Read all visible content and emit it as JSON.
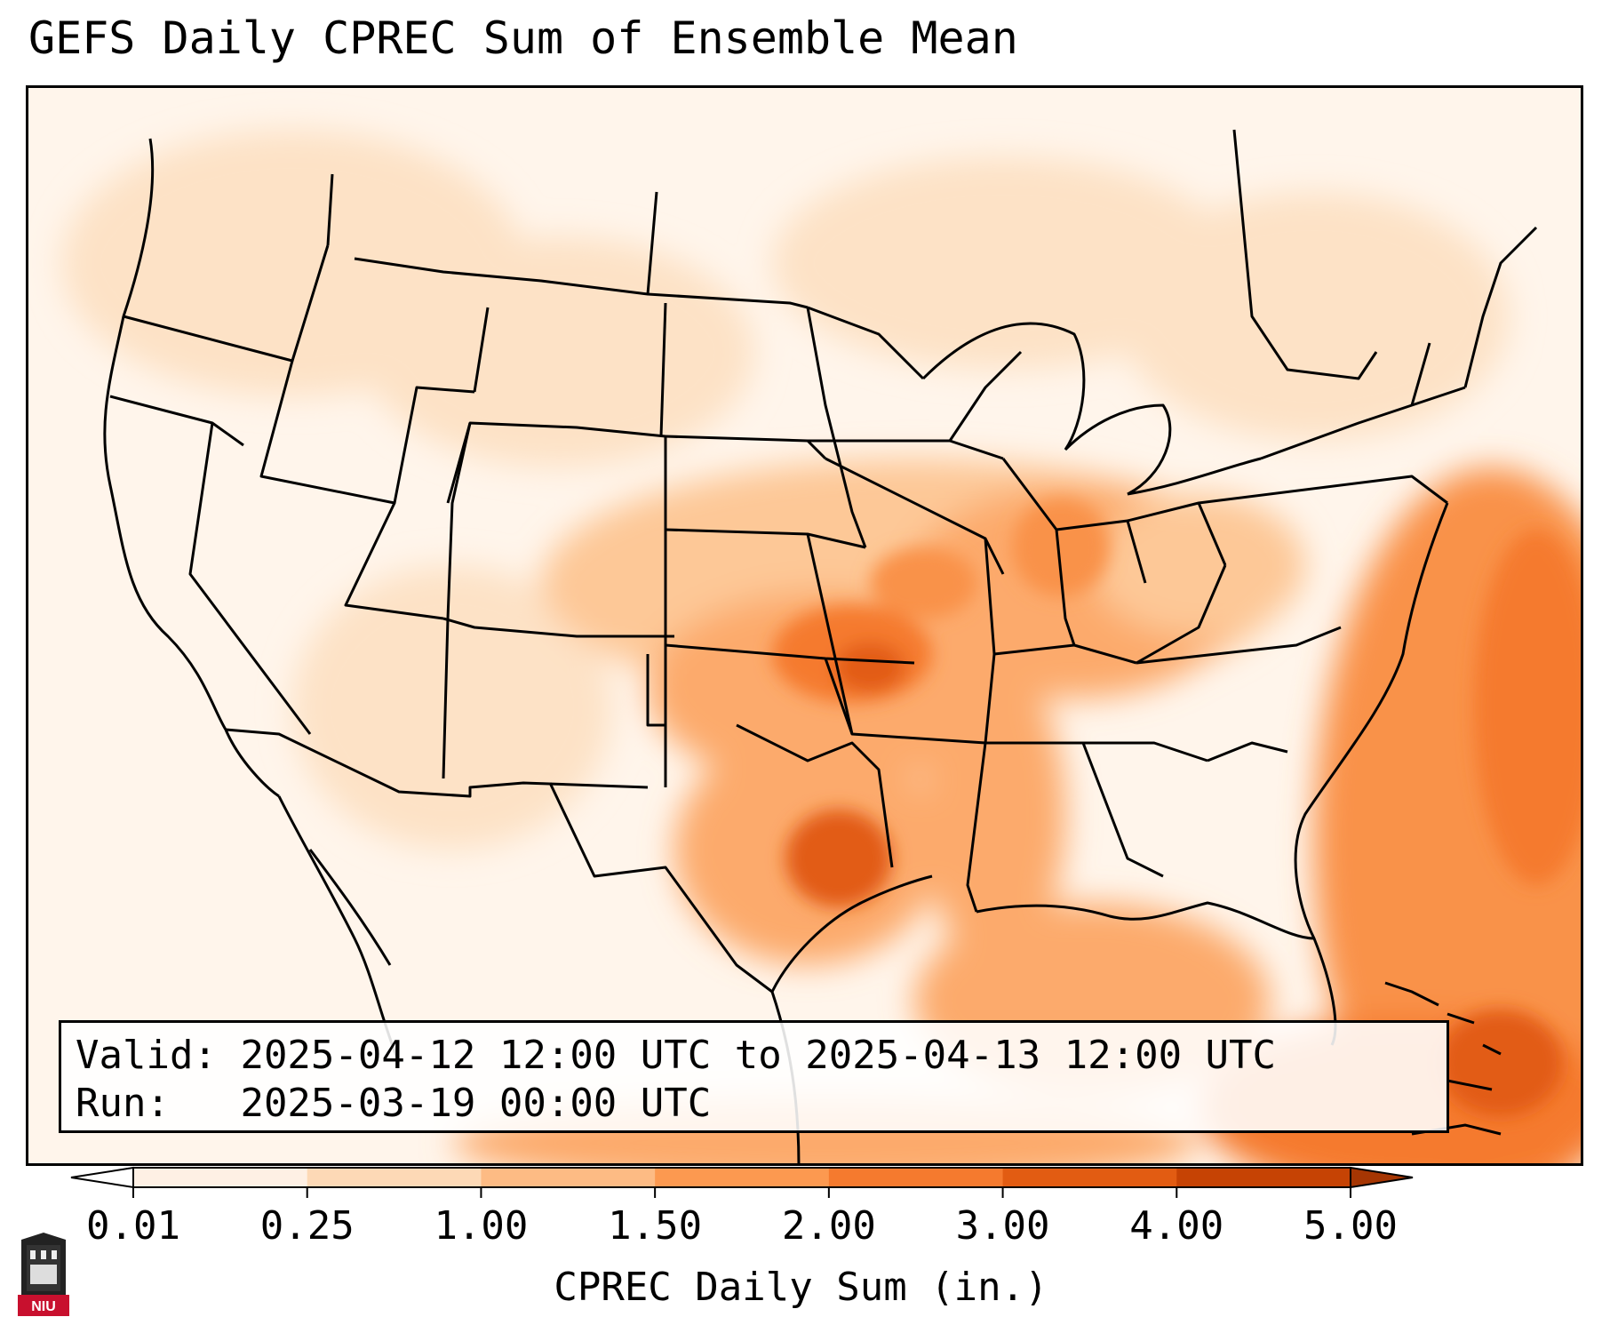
{
  "title": "GEFS Daily CPREC Sum of Ensemble Mean",
  "info": {
    "valid_label": "Valid:",
    "valid_text": "2025-04-12 12:00 UTC to 2025-04-13 12:00 UTC",
    "run_label": "Run:",
    "run_text": "2025-03-19 00:00 UTC"
  },
  "colorbar": {
    "label": "CPREC Daily Sum (in.)",
    "ticks": [
      "0.01",
      "0.25",
      "1.00",
      "1.50",
      "2.00",
      "3.00",
      "4.00",
      "5.00"
    ],
    "colors": [
      "#fef0e4",
      "#fdd9b6",
      "#fdbb84",
      "#fc9950",
      "#f57a2e",
      "#e25c12",
      "#c64304"
    ],
    "extend": "both",
    "under_color": "#ffffff",
    "over_color": "#a63603"
  },
  "map": {
    "projection": "lambert-conformal",
    "region": "CONUS",
    "field": "CPREC daily sum",
    "heavy_precip_areas": [
      {
        "area": "Oklahoma / Missouri / Illinois",
        "max_in": 3.0
      },
      {
        "area": "East Texas",
        "max_in": 4.0
      },
      {
        "area": "Western Atlantic / Bahamas",
        "max_in": 3.0
      },
      {
        "area": "Gulf of Mexico",
        "max_in": 2.0
      }
    ]
  },
  "logo": {
    "text": "NIU",
    "icon": "niu-logo-icon",
    "color": "#c8102e"
  }
}
